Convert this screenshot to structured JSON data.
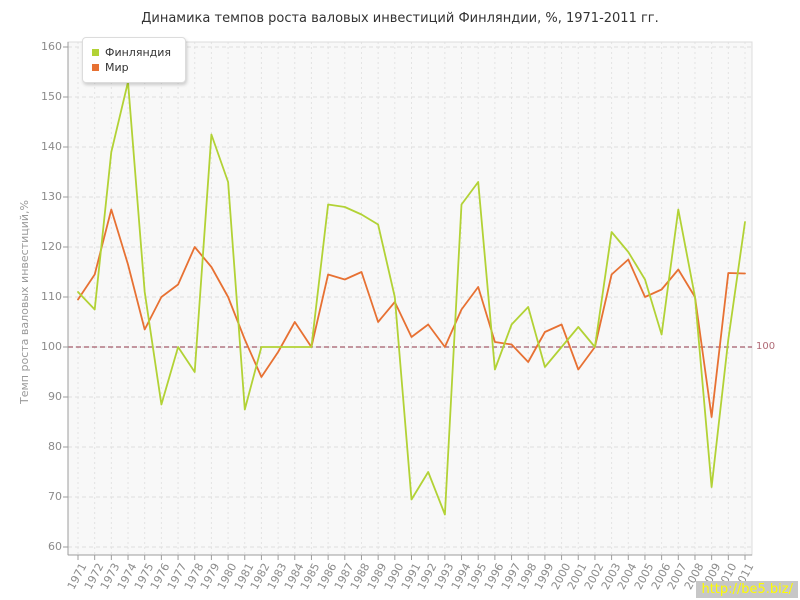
{
  "title": "Динамика темпов роста валовых инвестиций Финляндии, %, 1971-2011 гг.",
  "y_axis_title": "Темп роста валовых инвестиций,%",
  "watermark": "http://be5.biz/",
  "baseline": {
    "value": 100,
    "label": "100",
    "line_color": "#8e3346",
    "label_color": "#b06a76"
  },
  "colors": {
    "finland": "#b2d235",
    "world": "#e77133",
    "grid_h": "#dedede",
    "grid_v": "#e3e3e3",
    "plot_bg": "#f8f8f8",
    "frame": "#dcdcdc",
    "axis": "#9c9c9c"
  },
  "chart_data": {
    "type": "line",
    "title": "Динамика темпов роста валовых инвестиций Финляндии, %, 1971-2011 гг.",
    "xlabel": "",
    "ylabel": "Темп роста валовых инвестиций,%",
    "ylim": [
      60,
      160
    ],
    "y_ticks": [
      60,
      70,
      80,
      90,
      100,
      110,
      120,
      130,
      140,
      150,
      160
    ],
    "grid": true,
    "legend_position": "top-left",
    "reference_line": 100,
    "x": [
      1971,
      1972,
      1973,
      1974,
      1975,
      1976,
      1977,
      1978,
      1979,
      1980,
      1981,
      1982,
      1983,
      1984,
      1985,
      1986,
      1987,
      1988,
      1989,
      1990,
      1991,
      1992,
      1993,
      1994,
      1995,
      1996,
      1997,
      1998,
      1999,
      2000,
      2001,
      2002,
      2003,
      2004,
      2005,
      2006,
      2007,
      2008,
      2009,
      2010,
      2011
    ],
    "series": [
      {
        "name": "Финляндия",
        "color": "#b2d235",
        "values": [
          111,
          107.5,
          139,
          153,
          111,
          88.5,
          100,
          95,
          142.5,
          133,
          87.5,
          100,
          100,
          100,
          100,
          128.5,
          128,
          126.5,
          124.5,
          110,
          69.5,
          75,
          66.5,
          128.5,
          133,
          95.5,
          104.5,
          108,
          96,
          100,
          104,
          100,
          123,
          119,
          113.5,
          102.5,
          127.5,
          110,
          72,
          101.5,
          125
        ]
      },
      {
        "name": "Мир",
        "color": "#e77133",
        "values": [
          109.5,
          114.5,
          127.5,
          116.5,
          103.5,
          110,
          112.5,
          120,
          116,
          110,
          101.5,
          94,
          99,
          105,
          100,
          114.5,
          113.5,
          115,
          105,
          109,
          102,
          104.5,
          100,
          107.5,
          112,
          101,
          100.5,
          97,
          103,
          104.5,
          95.5,
          100,
          114.5,
          117.5,
          110,
          111.5,
          115.5,
          110,
          86,
          114.8,
          114.7
        ]
      }
    ]
  }
}
